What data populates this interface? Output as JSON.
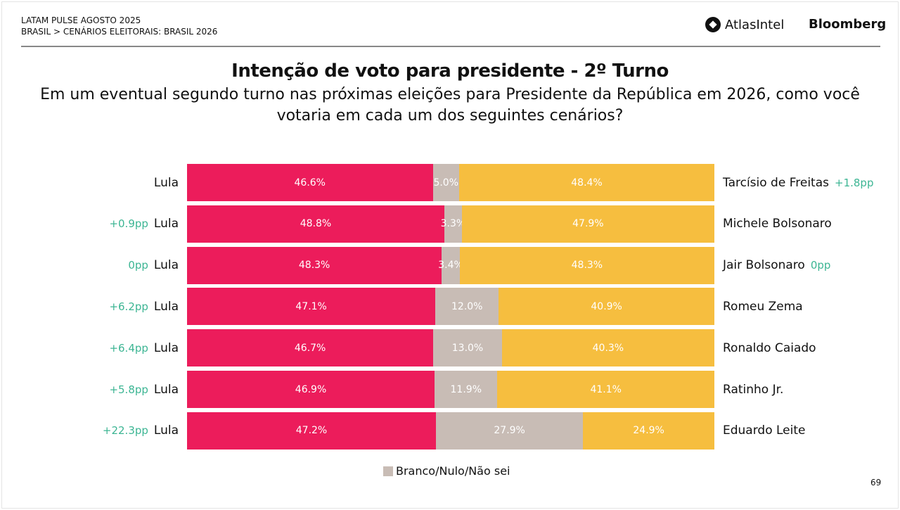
{
  "header": {
    "line1": "LATAM PULSE AGOSTO 2025",
    "line2": "BRASIL > CENÁRIOS ELEITORAIS: BRASIL 2026",
    "logo1": "AtlasIntel",
    "logo2": "Bloomberg"
  },
  "page_number": "69",
  "chart_data": {
    "type": "bar",
    "stacked": true,
    "title": "Intenção de voto para presidente - 2º Turno",
    "subtitle": "Em um eventual segundo turno nas próximas eleições para Presidente da República em 2026, como você votaria em cada um dos seguintes cenários?",
    "legend": [
      {
        "label": "Branco/Nulo/Não sei",
        "color": "#c8bcb5"
      }
    ],
    "colors": {
      "left": "#ec1c5b",
      "middle": "#c8bcb5",
      "right": "#f6be3f",
      "delta": "#3cb593"
    },
    "rows": [
      {
        "left": "Lula",
        "left_delta": "",
        "lula": 46.6,
        "blank": 5.0,
        "right_val": 48.4,
        "right": "Tarcísio de Freitas",
        "right_delta": "+1.8pp"
      },
      {
        "left": "Lula",
        "left_delta": "+0.9pp",
        "lula": 48.8,
        "blank": 3.3,
        "right_val": 47.9,
        "right": "Michele Bolsonaro",
        "right_delta": ""
      },
      {
        "left": "Lula",
        "left_delta": "0pp",
        "lula": 48.3,
        "blank": 3.4,
        "right_val": 48.3,
        "right": "Jair Bolsonaro",
        "right_delta": "0pp"
      },
      {
        "left": "Lula",
        "left_delta": "+6.2pp",
        "lula": 47.1,
        "blank": 12.0,
        "right_val": 40.9,
        "right": "Romeu Zema",
        "right_delta": ""
      },
      {
        "left": "Lula",
        "left_delta": "+6.4pp",
        "lula": 46.7,
        "blank": 13.0,
        "right_val": 40.3,
        "right": "Ronaldo Caiado",
        "right_delta": ""
      },
      {
        "left": "Lula",
        "left_delta": "+5.8pp",
        "lula": 46.9,
        "blank": 11.9,
        "right_val": 41.1,
        "right": "Ratinho Jr.",
        "right_delta": ""
      },
      {
        "left": "Lula",
        "left_delta": "+22.3pp",
        "lula": 47.2,
        "blank": 27.9,
        "right_val": 24.9,
        "right": "Eduardo Leite",
        "right_delta": ""
      }
    ]
  }
}
